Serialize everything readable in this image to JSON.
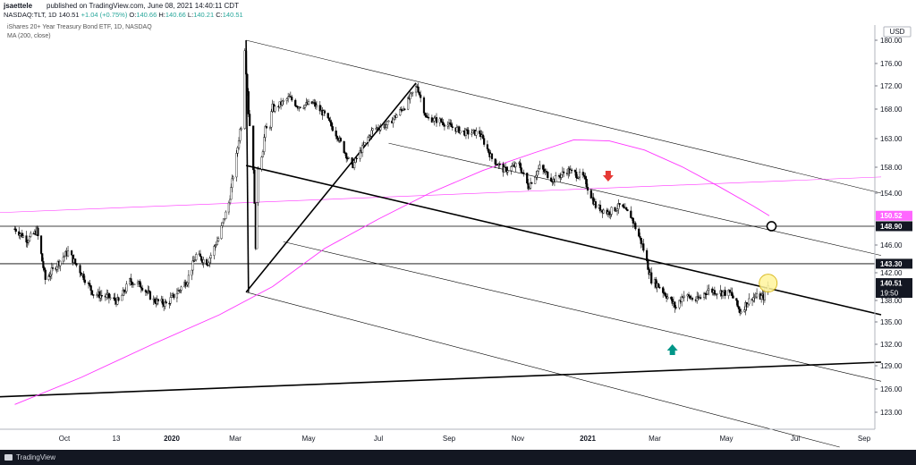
{
  "header": {
    "author": "jsaettele",
    "published": "published on TradingView.com, June 08, 2021 14:40:11 CDT",
    "symbol": "NASDAQ:TLT, 1D",
    "last": "140.51",
    "change": "+1.04 (+0.75%)",
    "open_label": "O:",
    "open": "140.66",
    "high_label": "H:",
    "high": "140.66",
    "low_label": "L:",
    "low": "140.21",
    "close_label": "C:",
    "close": "140.51"
  },
  "legend": {
    "title": "iShares 20+ Year Treasury Bond ETF, 1D, NASDAQ",
    "ma": "MA (200, close)"
  },
  "footer": {
    "brand": "TradingView"
  },
  "colors": {
    "ma_line": "#ff33ff",
    "up_candle": "#ffffff",
    "down_candle": "#000000",
    "arrow_down": "#e53935",
    "arrow_up": "#009688",
    "marker_fill": "#fff59d",
    "label_ma": "#ff66ff",
    "label_dark": "#131722"
  },
  "chart_data": {
    "type": "candlestick",
    "currency": "USD",
    "y_ticks": [
      "180.00",
      "176.00",
      "172.00",
      "168.00",
      "163.00",
      "158.00",
      "154.00",
      "150.52",
      "148.90",
      "146.00",
      "143.30",
      "142.00",
      "140.51",
      "138.00",
      "135.00",
      "132.00",
      "129.00",
      "126.00",
      "123.00"
    ],
    "price_ticks": [
      180,
      176,
      172,
      168,
      163,
      158,
      154,
      146,
      142,
      138,
      135,
      132,
      129,
      126,
      123
    ],
    "x_ticks": [
      {
        "label": "Oct",
        "date": "2019-10-01"
      },
      {
        "label": "13",
        "date": "2019-11-13"
      },
      {
        "label": "2020",
        "date": "2020-01-01"
      },
      {
        "label": "Mar",
        "date": "2020-03-01"
      },
      {
        "label": "May",
        "date": "2020-05-01"
      },
      {
        "label": "Jul",
        "date": "2020-07-01"
      },
      {
        "label": "Sep",
        "date": "2020-09-01"
      },
      {
        "label": "Nov",
        "date": "2020-11-01"
      },
      {
        "label": "2021",
        "date": "2021-01-01"
      },
      {
        "label": "Mar",
        "date": "2021-03-01"
      },
      {
        "label": "May",
        "date": "2021-05-01"
      },
      {
        "label": "Jul",
        "date": "2021-07-01"
      },
      {
        "label": "Sep",
        "date": "2021-09-01"
      }
    ],
    "price_labels": [
      {
        "value": 150.52,
        "text": "150.52",
        "kind": "ma"
      },
      {
        "value": 148.9,
        "text": "148.90",
        "kind": "dark"
      },
      {
        "value": 143.3,
        "text": "143.30",
        "kind": "dark"
      },
      {
        "value": 140.51,
        "text": "140.51",
        "kind": "dark",
        "countdown": "19:50"
      }
    ],
    "horizontal_levels": [
      148.9,
      143.3
    ],
    "series_close": [
      [
        "2019-08-15",
        148.5
      ],
      [
        "2019-08-27",
        146.8
      ],
      [
        "2019-09-05",
        148.2
      ],
      [
        "2019-09-13",
        141.0
      ],
      [
        "2019-09-24",
        143.2
      ],
      [
        "2019-10-04",
        145.0
      ],
      [
        "2019-10-15",
        142.0
      ],
      [
        "2019-10-25",
        139.0
      ],
      [
        "2019-11-06",
        138.5
      ],
      [
        "2019-11-15",
        137.8
      ],
      [
        "2019-11-25",
        140.8
      ],
      [
        "2019-12-05",
        140.2
      ],
      [
        "2019-12-16",
        138.0
      ],
      [
        "2019-12-27",
        137.5
      ],
      [
        "2020-01-08",
        139.5
      ],
      [
        "2020-01-16",
        141.0
      ],
      [
        "2020-01-24",
        144.5
      ],
      [
        "2020-02-04",
        143.5
      ],
      [
        "2020-02-14",
        147.0
      ],
      [
        "2020-02-24",
        152.5
      ],
      [
        "2020-03-02",
        160.0
      ],
      [
        "2020-03-06",
        166.0
      ],
      [
        "2020-03-09",
        179.5
      ],
      [
        "2020-03-12",
        168.0
      ],
      [
        "2020-03-16",
        158.0
      ],
      [
        "2020-03-18",
        146.0
      ],
      [
        "2020-03-20",
        158.0
      ],
      [
        "2020-03-25",
        163.0
      ],
      [
        "2020-04-02",
        168.0
      ],
      [
        "2020-04-15",
        170.0
      ],
      [
        "2020-04-22",
        168.5
      ],
      [
        "2020-05-05",
        169.0
      ],
      [
        "2020-05-15",
        167.0
      ],
      [
        "2020-05-26",
        163.5
      ],
      [
        "2020-06-08",
        158.0
      ],
      [
        "2020-06-16",
        161.0
      ],
      [
        "2020-06-26",
        164.5
      ],
      [
        "2020-07-10",
        165.5
      ],
      [
        "2020-07-24",
        168.5
      ],
      [
        "2020-08-04",
        172.0
      ],
      [
        "2020-08-12",
        166.5
      ],
      [
        "2020-08-24",
        166.0
      ],
      [
        "2020-09-03",
        165.0
      ],
      [
        "2020-09-15",
        164.0
      ],
      [
        "2020-09-28",
        164.0
      ],
      [
        "2020-10-09",
        159.5
      ],
      [
        "2020-10-20",
        157.5
      ],
      [
        "2020-11-02",
        158.5
      ],
      [
        "2020-11-10",
        155.0
      ],
      [
        "2020-11-20",
        158.0
      ],
      [
        "2020-12-02",
        156.0
      ],
      [
        "2020-12-14",
        157.5
      ],
      [
        "2020-12-28",
        156.5
      ],
      [
        "2021-01-08",
        152.0
      ],
      [
        "2021-01-19",
        151.0
      ],
      [
        "2021-01-29",
        152.0
      ],
      [
        "2021-02-08",
        150.5
      ],
      [
        "2021-02-18",
        146.0
      ],
      [
        "2021-02-26",
        141.0
      ],
      [
        "2021-03-05",
        140.0
      ],
      [
        "2021-03-12",
        138.5
      ],
      [
        "2021-03-19",
        137.0
      ],
      [
        "2021-03-25",
        138.8
      ],
      [
        "2021-04-06",
        138.0
      ],
      [
        "2021-04-15",
        139.5
      ],
      [
        "2021-04-26",
        139.2
      ],
      [
        "2021-05-05",
        139.0
      ],
      [
        "2021-05-13",
        136.5
      ],
      [
        "2021-05-24",
        138.5
      ],
      [
        "2021-06-03",
        138.5
      ],
      [
        "2021-06-08",
        140.51
      ]
    ],
    "ma200": [
      [
        "2019-08-15",
        124.0
      ],
      [
        "2019-10-15",
        127.5
      ],
      [
        "2019-12-15",
        132.0
      ],
      [
        "2020-02-15",
        136.0
      ],
      [
        "2020-04-01",
        140.0
      ],
      [
        "2020-05-15",
        145.5
      ],
      [
        "2020-07-01",
        150.0
      ],
      [
        "2020-08-15",
        154.0
      ],
      [
        "2020-10-01",
        157.5
      ],
      [
        "2020-11-15",
        160.5
      ],
      [
        "2020-12-20",
        162.8
      ],
      [
        "2021-01-20",
        162.6
      ],
      [
        "2021-02-20",
        161.0
      ],
      [
        "2021-03-25",
        158.0
      ],
      [
        "2021-04-25",
        155.0
      ],
      [
        "2021-05-25",
        152.0
      ],
      [
        "2021-06-08",
        150.52
      ]
    ],
    "lines": [
      {
        "style": "thin",
        "p1": [
          "2020-03-10",
          180.0
        ],
        "p2": [
          "2021-09-15",
          154.0
        ]
      },
      {
        "style": "thin",
        "p1": [
          "2020-07-10",
          162.2
        ],
        "p2": [
          "2021-09-15",
          144.5
        ]
      },
      {
        "style": "thin",
        "p1": [
          "2020-04-10",
          146.5
        ],
        "p2": [
          "2021-09-15",
          127.0
        ]
      },
      {
        "style": "thin",
        "p1": [
          "2020-03-10",
          139.2
        ],
        "p2": [
          "2021-08-10",
          118.5
        ]
      },
      {
        "style": "thin",
        "color": "ma",
        "p1": [
          "2019-08-01",
          151.0
        ],
        "p2": [
          "2021-09-15",
          156.5
        ]
      },
      {
        "style": "thick",
        "p1": [
          "2020-03-10",
          158.3
        ],
        "p2": [
          "2021-09-15",
          136.0
        ]
      },
      {
        "style": "thick",
        "p1": [
          "2019-08-01",
          125.0
        ],
        "p2": [
          "2021-09-15",
          129.5
        ]
      },
      {
        "style": "thick",
        "p1": [
          "2020-03-10",
          139.2
        ],
        "p2": [
          "2020-08-03",
          172.5
        ]
      },
      {
        "style": "thick",
        "p1": [
          "2020-03-10",
          180.0
        ],
        "p2": [
          "2020-03-12",
          139.2
        ]
      }
    ],
    "annotations": [
      {
        "type": "arrow-down",
        "at": [
          "2021-01-19",
          155.8
        ]
      },
      {
        "type": "arrow-up",
        "at": [
          "2021-03-16",
          132.0
        ]
      },
      {
        "type": "circle-open",
        "at": [
          "2021-06-10",
          148.9
        ]
      },
      {
        "type": "circle-filled",
        "at": [
          "2021-06-07",
          140.5
        ]
      }
    ]
  }
}
